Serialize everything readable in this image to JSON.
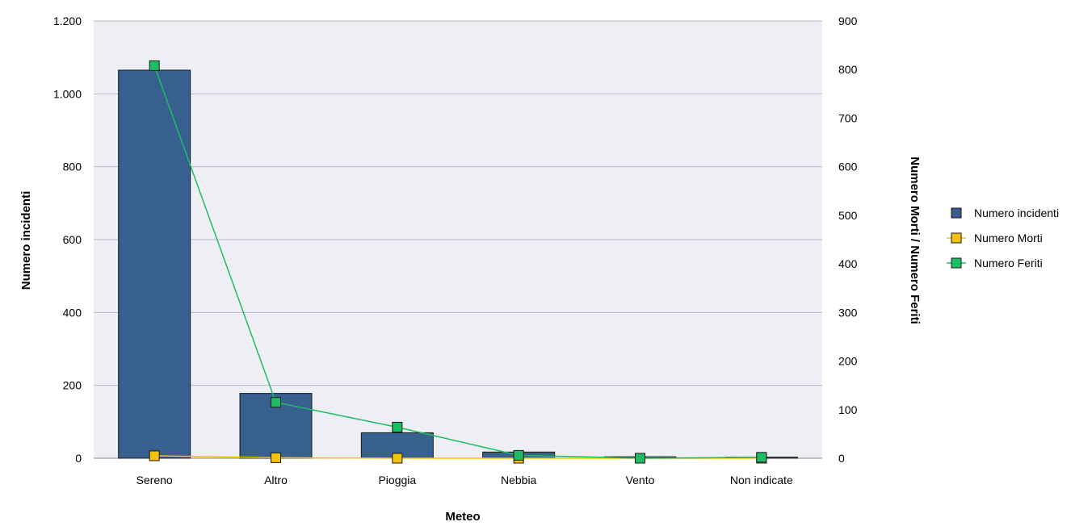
{
  "chart_data": {
    "type": "bar",
    "xlabel": "Meteo",
    "ylabel_left": "Numero incidenti",
    "ylabel_right": "Numero Morti / Numero Feriti",
    "categories": [
      "Sereno",
      "Altro",
      "Pioggia",
      "Nebbia",
      "Vento",
      "Non indicate"
    ],
    "ylim_left": [
      0,
      1200
    ],
    "ylim_right": [
      0,
      900
    ],
    "yticks_left": [
      0,
      200,
      400,
      600,
      800,
      1000,
      1200
    ],
    "yticks_left_labels": [
      "0",
      "200",
      "400",
      "600",
      "800",
      "1.000",
      "1.200"
    ],
    "yticks_right": [
      0,
      100,
      200,
      300,
      400,
      500,
      600,
      700,
      800,
      900
    ],
    "yticks_right_labels": [
      "0",
      "100",
      "200",
      "300",
      "400",
      "500",
      "600",
      "700",
      "800",
      "900"
    ],
    "grid": true,
    "legend_position": "right",
    "series": [
      {
        "name": "Numero incidenti",
        "kind": "bar",
        "axis": "left",
        "color": "#37608f",
        "values": [
          1065,
          178,
          70,
          17,
          4,
          3
        ]
      },
      {
        "name": "Numero Morti",
        "kind": "line",
        "axis": "right",
        "color": "#f5c30f",
        "values": [
          5,
          1,
          0,
          0,
          0,
          0
        ]
      },
      {
        "name": "Numero Feriti",
        "kind": "line",
        "axis": "right",
        "color": "#1ebd63",
        "values": [
          808,
          115,
          64,
          6,
          0,
          2
        ]
      }
    ]
  }
}
